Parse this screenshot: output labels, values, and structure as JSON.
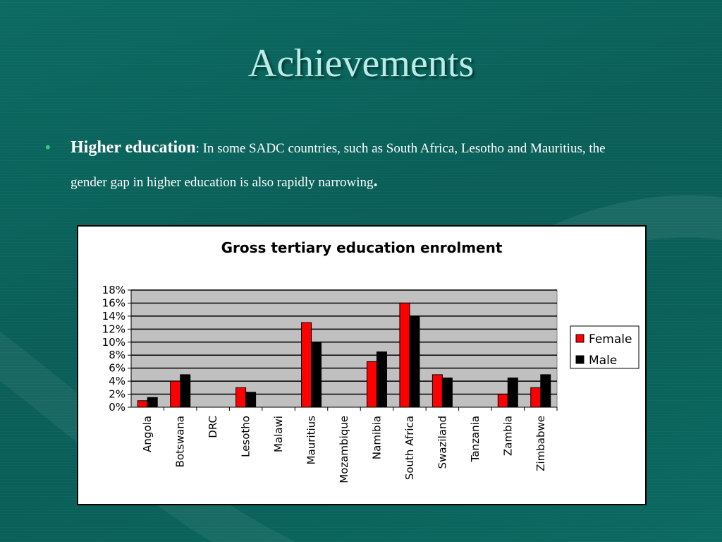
{
  "slide": {
    "title": "Achievements",
    "bullet": {
      "heading": "Higher education",
      "separator": ":",
      "text": "In some SADC countries, such as South Africa, Lesotho and Mauritius, the gender gap in higher education is also rapidly narrowing",
      "end": "."
    }
  },
  "colors": {
    "female": "#ff0000",
    "male": "#000000",
    "plot_bg": "#c0c0c0",
    "title": "#b9ece6",
    "bullet": "#22d38c"
  },
  "chart_data": {
    "type": "bar",
    "title": "Gross tertiary education enrolment",
    "categories": [
      "Angola",
      "Botswana",
      "DRC",
      "Lesotho",
      "Malawi",
      "Mauritius",
      "Mozambique",
      "Namibia",
      "South Africa",
      "Swaziland",
      "Tanzania",
      "Zambia",
      "Zimbabwe"
    ],
    "series": [
      {
        "name": "Female",
        "values": [
          1,
          4,
          0,
          3,
          0,
          13,
          0,
          7,
          16,
          5,
          0,
          2,
          3
        ]
      },
      {
        "name": "Male",
        "values": [
          1.5,
          5,
          0,
          2.3,
          0,
          10,
          0,
          8.5,
          14,
          4.5,
          0,
          4.5,
          5
        ]
      }
    ],
    "yticks": [
      "0%",
      "2%",
      "4%",
      "6%",
      "8%",
      "10%",
      "12%",
      "14%",
      "16%",
      "18%"
    ],
    "ylim": [
      0,
      18
    ],
    "legend_position": "right",
    "grid": true
  }
}
